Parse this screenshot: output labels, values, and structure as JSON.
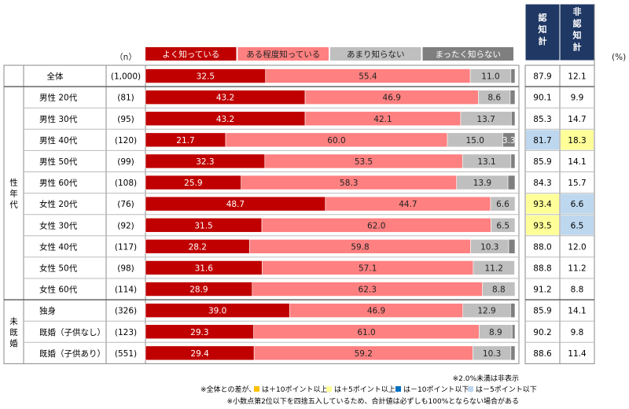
{
  "chart_data": {
    "type": "bar",
    "stacked": true,
    "orientation": "horizontal",
    "n_header": "（n）",
    "series": [
      {
        "name": "よく知っている",
        "color": "#c00000"
      },
      {
        "name": "ある程度知っている",
        "color": "#ff8080"
      },
      {
        "name": "あまり知らない",
        "color": "#bfbfbf"
      },
      {
        "name": "まったく知らない",
        "color": "#7f7f7f"
      }
    ],
    "summary_headers": [
      "認知計",
      "非認知計"
    ],
    "summary_header_color": "#1f3864",
    "percent_unit": "(%)",
    "groups": [
      {
        "label": "",
        "start": 0,
        "end": 0
      },
      {
        "label": "性年代",
        "start": 1,
        "end": 10
      },
      {
        "label": "未既婚",
        "start": 11,
        "end": 13
      }
    ],
    "rows": [
      {
        "label": "全体",
        "n": "(1,000)",
        "values": [
          32.5,
          55.4,
          11.0,
          1.1
        ],
        "labels": [
          "32.5",
          "55.4",
          "11.0",
          ""
        ],
        "aware": "87.9",
        "unaware": "12.1",
        "aware_hl": "",
        "unaware_hl": ""
      },
      {
        "label": "男性 20代",
        "n": "(81)",
        "values": [
          43.2,
          46.9,
          8.6,
          1.3
        ],
        "labels": [
          "43.2",
          "46.9",
          "8.6",
          ""
        ],
        "aware": "90.1",
        "unaware": "9.9",
        "aware_hl": "",
        "unaware_hl": ""
      },
      {
        "label": "男性 30代",
        "n": "(95)",
        "values": [
          43.2,
          42.1,
          13.7,
          1.0
        ],
        "labels": [
          "43.2",
          "42.1",
          "13.7",
          ""
        ],
        "aware": "85.3",
        "unaware": "14.7",
        "aware_hl": "",
        "unaware_hl": ""
      },
      {
        "label": "男性 40代",
        "n": "(120)",
        "values": [
          21.7,
          60.0,
          15.0,
          3.3
        ],
        "labels": [
          "21.7",
          "60.0",
          "15.0",
          "3.3"
        ],
        "aware": "81.7",
        "unaware": "18.3",
        "aware_hl": "#bdd7ee",
        "unaware_hl": "#ffff99"
      },
      {
        "label": "男性 50代",
        "n": "(99)",
        "values": [
          32.3,
          53.5,
          13.1,
          1.1
        ],
        "labels": [
          "32.3",
          "53.5",
          "13.1",
          ""
        ],
        "aware": "85.9",
        "unaware": "14.1",
        "aware_hl": "",
        "unaware_hl": ""
      },
      {
        "label": "男性 60代",
        "n": "(108)",
        "values": [
          25.9,
          58.3,
          13.9,
          1.9
        ],
        "labels": [
          "25.9",
          "58.3",
          "13.9",
          ""
        ],
        "aware": "84.3",
        "unaware": "15.7",
        "aware_hl": "",
        "unaware_hl": ""
      },
      {
        "label": "女性 20代",
        "n": "(76)",
        "values": [
          48.7,
          44.7,
          6.6,
          0.0
        ],
        "labels": [
          "48.7",
          "44.7",
          "6.6",
          ""
        ],
        "aware": "93.4",
        "unaware": "6.6",
        "aware_hl": "#ffff99",
        "unaware_hl": "#bdd7ee"
      },
      {
        "label": "女性 30代",
        "n": "(92)",
        "values": [
          31.5,
          62.0,
          6.5,
          0.0
        ],
        "labels": [
          "31.5",
          "62.0",
          "6.5",
          ""
        ],
        "aware": "93.5",
        "unaware": "6.5",
        "aware_hl": "#ffff99",
        "unaware_hl": "#bdd7ee"
      },
      {
        "label": "女性 40代",
        "n": "(117)",
        "values": [
          28.2,
          59.8,
          10.3,
          1.7
        ],
        "labels": [
          "28.2",
          "59.8",
          "10.3",
          ""
        ],
        "aware": "88.0",
        "unaware": "12.0",
        "aware_hl": "",
        "unaware_hl": ""
      },
      {
        "label": "女性 50代",
        "n": "(98)",
        "values": [
          31.6,
          57.1,
          11.2,
          0.1
        ],
        "labels": [
          "31.6",
          "57.1",
          "11.2",
          ""
        ],
        "aware": "88.8",
        "unaware": "11.2",
        "aware_hl": "",
        "unaware_hl": ""
      },
      {
        "label": "女性 60代",
        "n": "(114)",
        "values": [
          28.9,
          62.3,
          8.8,
          0.0
        ],
        "labels": [
          "28.9",
          "62.3",
          "8.8",
          ""
        ],
        "aware": "91.2",
        "unaware": "8.8",
        "aware_hl": "",
        "unaware_hl": ""
      },
      {
        "label": "独身",
        "n": "(326)",
        "values": [
          39.0,
          46.9,
          12.9,
          1.2
        ],
        "labels": [
          "39.0",
          "46.9",
          "12.9",
          ""
        ],
        "aware": "85.9",
        "unaware": "14.1",
        "aware_hl": "",
        "unaware_hl": ""
      },
      {
        "label": "既婚（子供なし）",
        "n": "(123)",
        "values": [
          29.3,
          61.0,
          8.9,
          0.8
        ],
        "labels": [
          "29.3",
          "61.0",
          "8.9",
          ""
        ],
        "aware": "90.2",
        "unaware": "9.8",
        "aware_hl": "",
        "unaware_hl": ""
      },
      {
        "label": "既婚（子供あり）",
        "n": "(551)",
        "values": [
          29.4,
          59.2,
          10.3,
          1.1
        ],
        "labels": [
          "29.4",
          "59.2",
          "10.3",
          ""
        ],
        "aware": "88.6",
        "unaware": "11.4",
        "aware_hl": "",
        "unaware_hl": ""
      }
    ],
    "notes": [
      "※2.0%未満は非表示",
      "※全体との差が、",
      "は＋10ポイント以上、",
      "は＋5ポイント以上、",
      "は－10ポイント以下、",
      "は－5ポイント以下",
      "※小数点第2位以下を四捨五入しているため、合計値は必ずしも100%とならない場合がある"
    ],
    "note_marker_colors": [
      "#ffc000",
      "#ffff99",
      "#0070c0",
      "#bdd7ee"
    ]
  }
}
